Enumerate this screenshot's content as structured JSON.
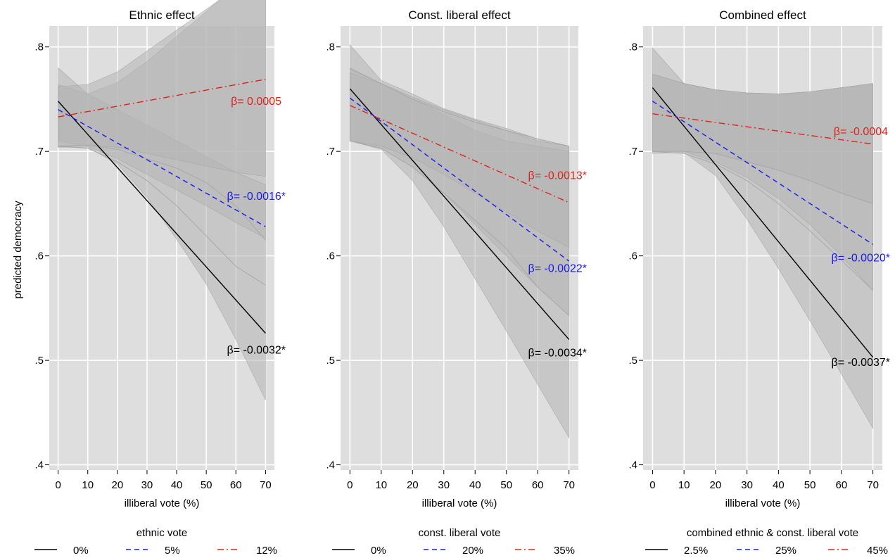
{
  "shared": {
    "ylabel": "predicted democracy",
    "xlabel": "illiberal vote (%)"
  },
  "colors": {
    "black": "#000000",
    "blue": "#1a1aee",
    "red": "#e0221b",
    "band": "#b4b4b4",
    "plot_bg": "#dedede",
    "grid": "#ffffff"
  },
  "chart_data": [
    {
      "type": "line",
      "title": "Ethnic effect",
      "xlabel": "illiberal vote (%)",
      "ylabel": "predicted democracy",
      "xlim": [
        -3,
        73
      ],
      "ylim": [
        0.395,
        0.82
      ],
      "xticks": [
        0,
        10,
        20,
        30,
        40,
        50,
        60,
        70
      ],
      "yticks": [
        0.4,
        0.5,
        0.6,
        0.7,
        0.8
      ],
      "ytick_labels": [
        ".4",
        ".5",
        ".6",
        ".7",
        ".8"
      ],
      "legend_title": "ethnic vote",
      "series": [
        {
          "name": "0%",
          "color": "#000000",
          "dash": "solid",
          "x": [
            0,
            70
          ],
          "y": [
            0.748,
            0.526
          ],
          "ci_lower": [
            0.704,
            0.704,
            0.688,
            0.656,
            0.616,
            0.573,
            0.52,
            0.462
          ],
          "ci_upper": [
            0.78,
            0.755,
            0.766,
            0.786,
            0.81,
            0.834,
            0.859,
            0.884
          ],
          "annotation": "β= -0.0032*"
        },
        {
          "name": "5%",
          "color": "#1a1aee",
          "dash": "dashed",
          "x": [
            0,
            70
          ],
          "y": [
            0.74,
            0.628
          ],
          "ci_lower": [
            0.71,
            0.705,
            0.693,
            0.678,
            0.663,
            0.648,
            0.632,
            0.617
          ],
          "ci_upper": [
            0.764,
            0.755,
            0.74,
            0.725,
            0.71,
            0.695,
            0.68,
            0.668
          ],
          "annotation": "β= -0.0016*"
        },
        {
          "name": "12%",
          "color": "#e0221b",
          "dash": "dashdot",
          "x": [
            0,
            70
          ],
          "y": [
            0.733,
            0.769
          ],
          "ci_lower": [
            0.704,
            0.706,
            0.704,
            0.698,
            0.692,
            0.686,
            0.68,
            0.676
          ],
          "ci_upper": [
            0.762,
            0.764,
            0.776,
            0.796,
            0.816,
            0.836,
            0.856,
            0.862
          ],
          "annotation": "β= 0.0005"
        }
      ],
      "gray_lines": [
        {
          "x": [
            0,
            10,
            20,
            30,
            40,
            50,
            60,
            70
          ],
          "y": [
            0.705,
            0.706,
            0.702,
            0.693,
            0.684,
            0.67,
            0.648,
            0.615
          ]
        },
        {
          "x": [
            0,
            10,
            20,
            30,
            40,
            50,
            60,
            70
          ],
          "y": [
            0.705,
            0.703,
            0.69,
            0.672,
            0.648,
            0.619,
            0.59,
            0.572
          ]
        }
      ]
    },
    {
      "type": "line",
      "title": "Const. liberal effect",
      "xlabel": "illiberal vote (%)",
      "ylabel": "",
      "xlim": [
        -3,
        73
      ],
      "ylim": [
        0.395,
        0.82
      ],
      "xticks": [
        0,
        10,
        20,
        30,
        40,
        50,
        60,
        70
      ],
      "yticks": [
        0.4,
        0.5,
        0.6,
        0.7,
        0.8
      ],
      "ytick_labels": [
        ".4",
        ".5",
        ".6",
        ".7",
        ".8"
      ],
      "legend_title": "const. liberal vote",
      "series": [
        {
          "name": "0%",
          "color": "#000000",
          "dash": "solid",
          "x": [
            0,
            70
          ],
          "y": [
            0.76,
            0.52
          ],
          "ci_lower": [
            0.71,
            0.702,
            0.672,
            0.628,
            0.578,
            0.528,
            0.477,
            0.426
          ],
          "ci_upper": [
            0.802,
            0.768,
            0.755,
            0.741,
            0.731,
            0.722,
            0.712,
            0.705
          ],
          "annotation": "β= -0.0034*"
        },
        {
          "name": "20%",
          "color": "#1a1aee",
          "dash": "dashed",
          "x": [
            0,
            70
          ],
          "y": [
            0.751,
            0.595
          ],
          "ci_lower": [
            0.71,
            0.703,
            0.685,
            0.66,
            0.63,
            0.6,
            0.57,
            0.543
          ],
          "ci_upper": [
            0.78,
            0.765,
            0.75,
            0.735,
            0.72,
            0.71,
            0.705,
            0.7
          ],
          "annotation": "β= -0.0022*"
        },
        {
          "name": "35%",
          "color": "#e0221b",
          "dash": "dashdot",
          "x": [
            0,
            70
          ],
          "y": [
            0.744,
            0.651
          ],
          "ci_lower": [
            0.71,
            0.705,
            0.694,
            0.678,
            0.66,
            0.642,
            0.624,
            0.608
          ],
          "ci_upper": [
            0.775,
            0.765,
            0.752,
            0.74,
            0.73,
            0.72,
            0.71,
            0.705
          ],
          "annotation": "β= -0.0013*"
        }
      ],
      "gray_lines": [
        {
          "x": [
            0,
            10,
            20,
            30,
            40,
            50,
            60,
            70
          ],
          "y": [
            0.71,
            0.703,
            0.685,
            0.66,
            0.634,
            0.607,
            0.57,
            0.543
          ]
        },
        {
          "x": [
            0,
            10,
            20,
            30,
            40,
            50,
            60,
            70
          ],
          "y": [
            0.779,
            0.765,
            0.75,
            0.738,
            0.728,
            0.72,
            0.712,
            0.705
          ]
        }
      ]
    },
    {
      "type": "line",
      "title": "Combined effect",
      "xlabel": "illiberal vote (%)",
      "ylabel": "",
      "xlim": [
        -3,
        73
      ],
      "ylim": [
        0.395,
        0.82
      ],
      "xticks": [
        0,
        10,
        20,
        30,
        40,
        50,
        60,
        70
      ],
      "yticks": [
        0.4,
        0.5,
        0.6,
        0.7,
        0.8
      ],
      "ytick_labels": [
        ".4",
        ".5",
        ".6",
        ".7",
        ".8"
      ],
      "legend_title": "combined ethnic & const. liberal vote",
      "series": [
        {
          "name": "2.5%",
          "color": "#000000",
          "dash": "solid",
          "x": [
            0,
            70
          ],
          "y": [
            0.761,
            0.503
          ],
          "ci_lower": [
            0.698,
            0.699,
            0.677,
            0.635,
            0.588,
            0.538,
            0.487,
            0.435
          ],
          "ci_upper": [
            0.799,
            0.765,
            0.759,
            0.756,
            0.755,
            0.757,
            0.761,
            0.765
          ],
          "annotation": "β= -0.0037*"
        },
        {
          "name": "25%",
          "color": "#1a1aee",
          "dash": "dashed",
          "x": [
            0,
            70
          ],
          "y": [
            0.748,
            0.611
          ],
          "ci_lower": [
            0.7,
            0.7,
            0.69,
            0.675,
            0.655,
            0.63,
            0.6,
            0.567
          ],
          "ci_upper": [
            0.774,
            0.765,
            0.759,
            0.756,
            0.755,
            0.757,
            0.761,
            0.765
          ],
          "annotation": "β= -0.0020*"
        },
        {
          "name": "45%",
          "color": "#e0221b",
          "dash": "dashdot",
          "x": [
            0,
            70
          ],
          "y": [
            0.736,
            0.707
          ],
          "ci_lower": [
            0.7,
            0.7,
            0.698,
            0.69,
            0.682,
            0.672,
            0.66,
            0.65
          ],
          "ci_upper": [
            0.774,
            0.765,
            0.759,
            0.756,
            0.755,
            0.757,
            0.761,
            0.765
          ],
          "annotation": "β= -0.0004"
        }
      ],
      "gray_lines": [
        {
          "x": [
            0,
            10,
            20,
            30,
            40,
            50,
            60,
            70
          ],
          "y": [
            0.7,
            0.7,
            0.698,
            0.69,
            0.682,
            0.672,
            0.66,
            0.65
          ]
        },
        {
          "x": [
            0,
            10,
            20,
            30,
            40,
            50,
            60,
            70
          ],
          "y": [
            0.7,
            0.698,
            0.688,
            0.672,
            0.65,
            0.624,
            0.596,
            0.567
          ]
        }
      ]
    }
  ]
}
